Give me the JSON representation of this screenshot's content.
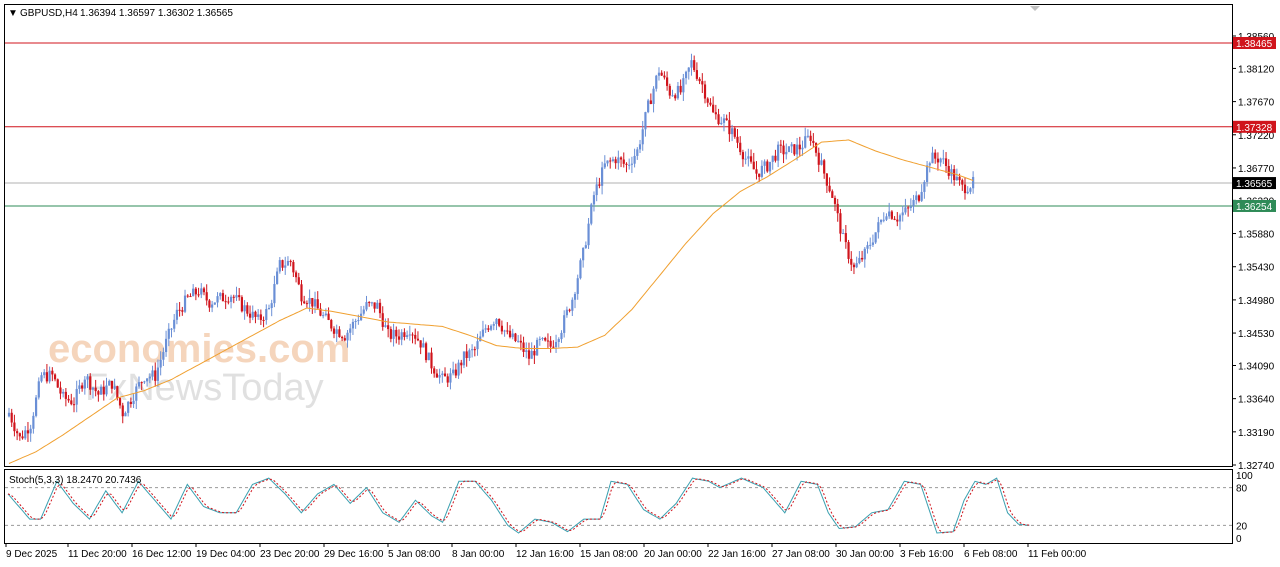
{
  "header": {
    "menu_arrow": "▼",
    "symbol": "GBPUSD,H4",
    "ohlc": "1.36394 1.36597 1.36302 1.36565"
  },
  "watermark": {
    "brand": "economies.com",
    "sub": "FxNewsToday"
  },
  "indicator": {
    "label": "Stoch(5,3,3) 18.2470 20.7436",
    "levels": [
      100,
      80,
      20,
      0
    ],
    "level_labels": [
      "100",
      "80",
      "20",
      "0"
    ]
  },
  "colors": {
    "bull": "#6a8fd6",
    "bear": "#d0141c",
    "ma": "#f0a030",
    "resistance": "#d0141c",
    "support": "#2e8b57",
    "current": "#b0b0b0",
    "stoch_main": "#3aa0b0",
    "stoch_signal": "#d0141c"
  },
  "chart_data": {
    "type": "candlestick",
    "symbol": "GBPUSD",
    "timeframe": "H4",
    "ylim": [
      1.3274,
      1.3856
    ],
    "y_ticks": [
      "1.38560",
      "1.38120",
      "1.37670",
      "1.37220",
      "1.36770",
      "1.36330",
      "1.35880",
      "1.35430",
      "1.34980",
      "1.34530",
      "1.34090",
      "1.33640",
      "1.33190",
      "1.32740"
    ],
    "x_ticks": [
      "9 Dec 2025",
      "11 Dec 20:00",
      "16 Dec 12:00",
      "19 Dec 04:00",
      "23 Dec 20:00",
      "29 Dec 16:00",
      "5 Jan 08:00",
      "8 Jan 00:00",
      "12 Jan 16:00",
      "15 Jan 08:00",
      "20 Jan 00:00",
      "22 Jan 16:00",
      "27 Jan 08:00",
      "30 Jan 00:00",
      "3 Feb 16:00",
      "6 Feb 08:00",
      "11 Feb 00:00"
    ],
    "levels": [
      {
        "name": "resistance",
        "value": 1.38465,
        "label": "1.38465"
      },
      {
        "name": "resistance",
        "value": 1.37328,
        "label": "1.37328"
      },
      {
        "name": "current",
        "value": 1.36565,
        "label": "1.36565"
      },
      {
        "name": "support",
        "value": 1.36254,
        "label": "1.36254"
      }
    ],
    "close_path": [
      [
        0,
        1.3345
      ],
      [
        4,
        1.331
      ],
      [
        8,
        1.333
      ],
      [
        12,
        1.3395
      ],
      [
        16,
        1.3395
      ],
      [
        20,
        1.3365
      ],
      [
        24,
        1.336
      ],
      [
        28,
        1.3395
      ],
      [
        33,
        1.337
      ],
      [
        38,
        1.3385
      ],
      [
        42,
        1.3345
      ],
      [
        46,
        1.337
      ],
      [
        50,
        1.3395
      ],
      [
        54,
        1.3395
      ],
      [
        58,
        1.344
      ],
      [
        62,
        1.348
      ],
      [
        66,
        1.35
      ],
      [
        70,
        1.351
      ],
      [
        74,
        1.3495
      ],
      [
        78,
        1.35
      ],
      [
        82,
        1.3505
      ],
      [
        86,
        1.349
      ],
      [
        92,
        1.347
      ],
      [
        96,
        1.3485
      ],
      [
        100,
        1.3545
      ],
      [
        104,
        1.355
      ],
      [
        108,
        1.3505
      ],
      [
        112,
        1.3495
      ],
      [
        116,
        1.3475
      ],
      [
        120,
        1.346
      ],
      [
        124,
        1.345
      ],
      [
        128,
        1.347
      ],
      [
        132,
        1.349
      ],
      [
        136,
        1.349
      ],
      [
        140,
        1.345
      ],
      [
        144,
        1.345
      ],
      [
        148,
        1.346
      ],
      [
        152,
        1.344
      ],
      [
        156,
        1.341
      ],
      [
        160,
        1.339
      ],
      [
        164,
        1.3395
      ],
      [
        168,
        1.342
      ],
      [
        172,
        1.343
      ],
      [
        176,
        1.346
      ],
      [
        180,
        1.3475
      ],
      [
        184,
        1.345
      ],
      [
        188,
        1.344
      ],
      [
        192,
        1.342
      ],
      [
        196,
        1.344
      ],
      [
        200,
        1.3435
      ],
      [
        204,
        1.346
      ],
      [
        208,
        1.35
      ],
      [
        212,
        1.356
      ],
      [
        216,
        1.364
      ],
      [
        220,
        1.368
      ],
      [
        224,
        1.369
      ],
      [
        228,
        1.368
      ],
      [
        232,
        1.37
      ],
      [
        236,
        1.376
      ],
      [
        240,
        1.381
      ],
      [
        244,
        1.378
      ],
      [
        248,
        1.378
      ],
      [
        252,
        1.382
      ],
      [
        256,
        1.379
      ],
      [
        260,
        1.375
      ],
      [
        264,
        1.374
      ],
      [
        268,
        1.372
      ],
      [
        272,
        1.369
      ],
      [
        276,
        1.367
      ],
      [
        280,
        1.368
      ],
      [
        284,
        1.37
      ],
      [
        288,
        1.37
      ],
      [
        292,
        1.3705
      ],
      [
        296,
        1.372
      ],
      [
        300,
        1.368
      ],
      [
        304,
        1.364
      ],
      [
        308,
        1.358
      ],
      [
        312,
        1.354
      ],
      [
        316,
        1.356
      ],
      [
        320,
        1.359
      ],
      [
        324,
        1.362
      ],
      [
        328,
        1.361
      ],
      [
        332,
        1.362
      ],
      [
        336,
        1.364
      ],
      [
        340,
        1.369
      ],
      [
        344,
        1.369
      ],
      [
        348,
        1.367
      ],
      [
        352,
        1.365
      ],
      [
        356,
        1.3656
      ]
    ],
    "ma_path": [
      [
        0,
        1.3276
      ],
      [
        10,
        1.3292
      ],
      [
        20,
        1.3315
      ],
      [
        30,
        1.334
      ],
      [
        40,
        1.3365
      ],
      [
        50,
        1.3375
      ],
      [
        60,
        1.339
      ],
      [
        70,
        1.341
      ],
      [
        80,
        1.343
      ],
      [
        90,
        1.345
      ],
      [
        100,
        1.347
      ],
      [
        110,
        1.3487
      ],
      [
        120,
        1.3482
      ],
      [
        130,
        1.3475
      ],
      [
        140,
        1.3468
      ],
      [
        150,
        1.3465
      ],
      [
        160,
        1.3462
      ],
      [
        170,
        1.345
      ],
      [
        180,
        1.3436
      ],
      [
        190,
        1.3432
      ],
      [
        200,
        1.3432
      ],
      [
        210,
        1.3434
      ],
      [
        220,
        1.345
      ],
      [
        230,
        1.3485
      ],
      [
        240,
        1.353
      ],
      [
        250,
        1.3575
      ],
      [
        260,
        1.3615
      ],
      [
        270,
        1.3645
      ],
      [
        280,
        1.3665
      ],
      [
        290,
        1.3688
      ],
      [
        300,
        1.3712
      ],
      [
        310,
        1.3715
      ],
      [
        320,
        1.37
      ],
      [
        330,
        1.3688
      ],
      [
        340,
        1.3678
      ],
      [
        350,
        1.3668
      ],
      [
        356,
        1.366
      ]
    ],
    "stoch_path": [
      [
        0,
        70
      ],
      [
        4,
        50
      ],
      [
        8,
        30
      ],
      [
        12,
        30
      ],
      [
        18,
        90
      ],
      [
        24,
        55
      ],
      [
        30,
        30
      ],
      [
        36,
        75
      ],
      [
        42,
        40
      ],
      [
        48,
        90
      ],
      [
        54,
        60
      ],
      [
        60,
        30
      ],
      [
        66,
        85
      ],
      [
        72,
        50
      ],
      [
        78,
        40
      ],
      [
        84,
        40
      ],
      [
        90,
        85
      ],
      [
        96,
        95
      ],
      [
        102,
        70
      ],
      [
        108,
        40
      ],
      [
        114,
        70
      ],
      [
        120,
        85
      ],
      [
        126,
        55
      ],
      [
        132,
        80
      ],
      [
        138,
        40
      ],
      [
        144,
        25
      ],
      [
        150,
        60
      ],
      [
        156,
        35
      ],
      [
        160,
        25
      ],
      [
        166,
        90
      ],
      [
        172,
        90
      ],
      [
        178,
        60
      ],
      [
        184,
        20
      ],
      [
        188,
        8
      ],
      [
        194,
        30
      ],
      [
        200,
        25
      ],
      [
        206,
        10
      ],
      [
        212,
        30
      ],
      [
        218,
        30
      ],
      [
        222,
        90
      ],
      [
        228,
        85
      ],
      [
        234,
        45
      ],
      [
        240,
        30
      ],
      [
        246,
        55
      ],
      [
        252,
        95
      ],
      [
        258,
        90
      ],
      [
        262,
        80
      ],
      [
        270,
        95
      ],
      [
        278,
        80
      ],
      [
        286,
        40
      ],
      [
        292,
        90
      ],
      [
        298,
        85
      ],
      [
        302,
        40
      ],
      [
        306,
        15
      ],
      [
        312,
        18
      ],
      [
        318,
        40
      ],
      [
        324,
        45
      ],
      [
        330,
        90
      ],
      [
        336,
        85
      ],
      [
        342,
        8
      ],
      [
        348,
        10
      ],
      [
        352,
        60
      ],
      [
        356,
        90
      ],
      [
        360,
        85
      ],
      [
        364,
        95
      ],
      [
        368,
        40
      ],
      [
        372,
        22
      ],
      [
        376,
        20
      ]
    ]
  }
}
